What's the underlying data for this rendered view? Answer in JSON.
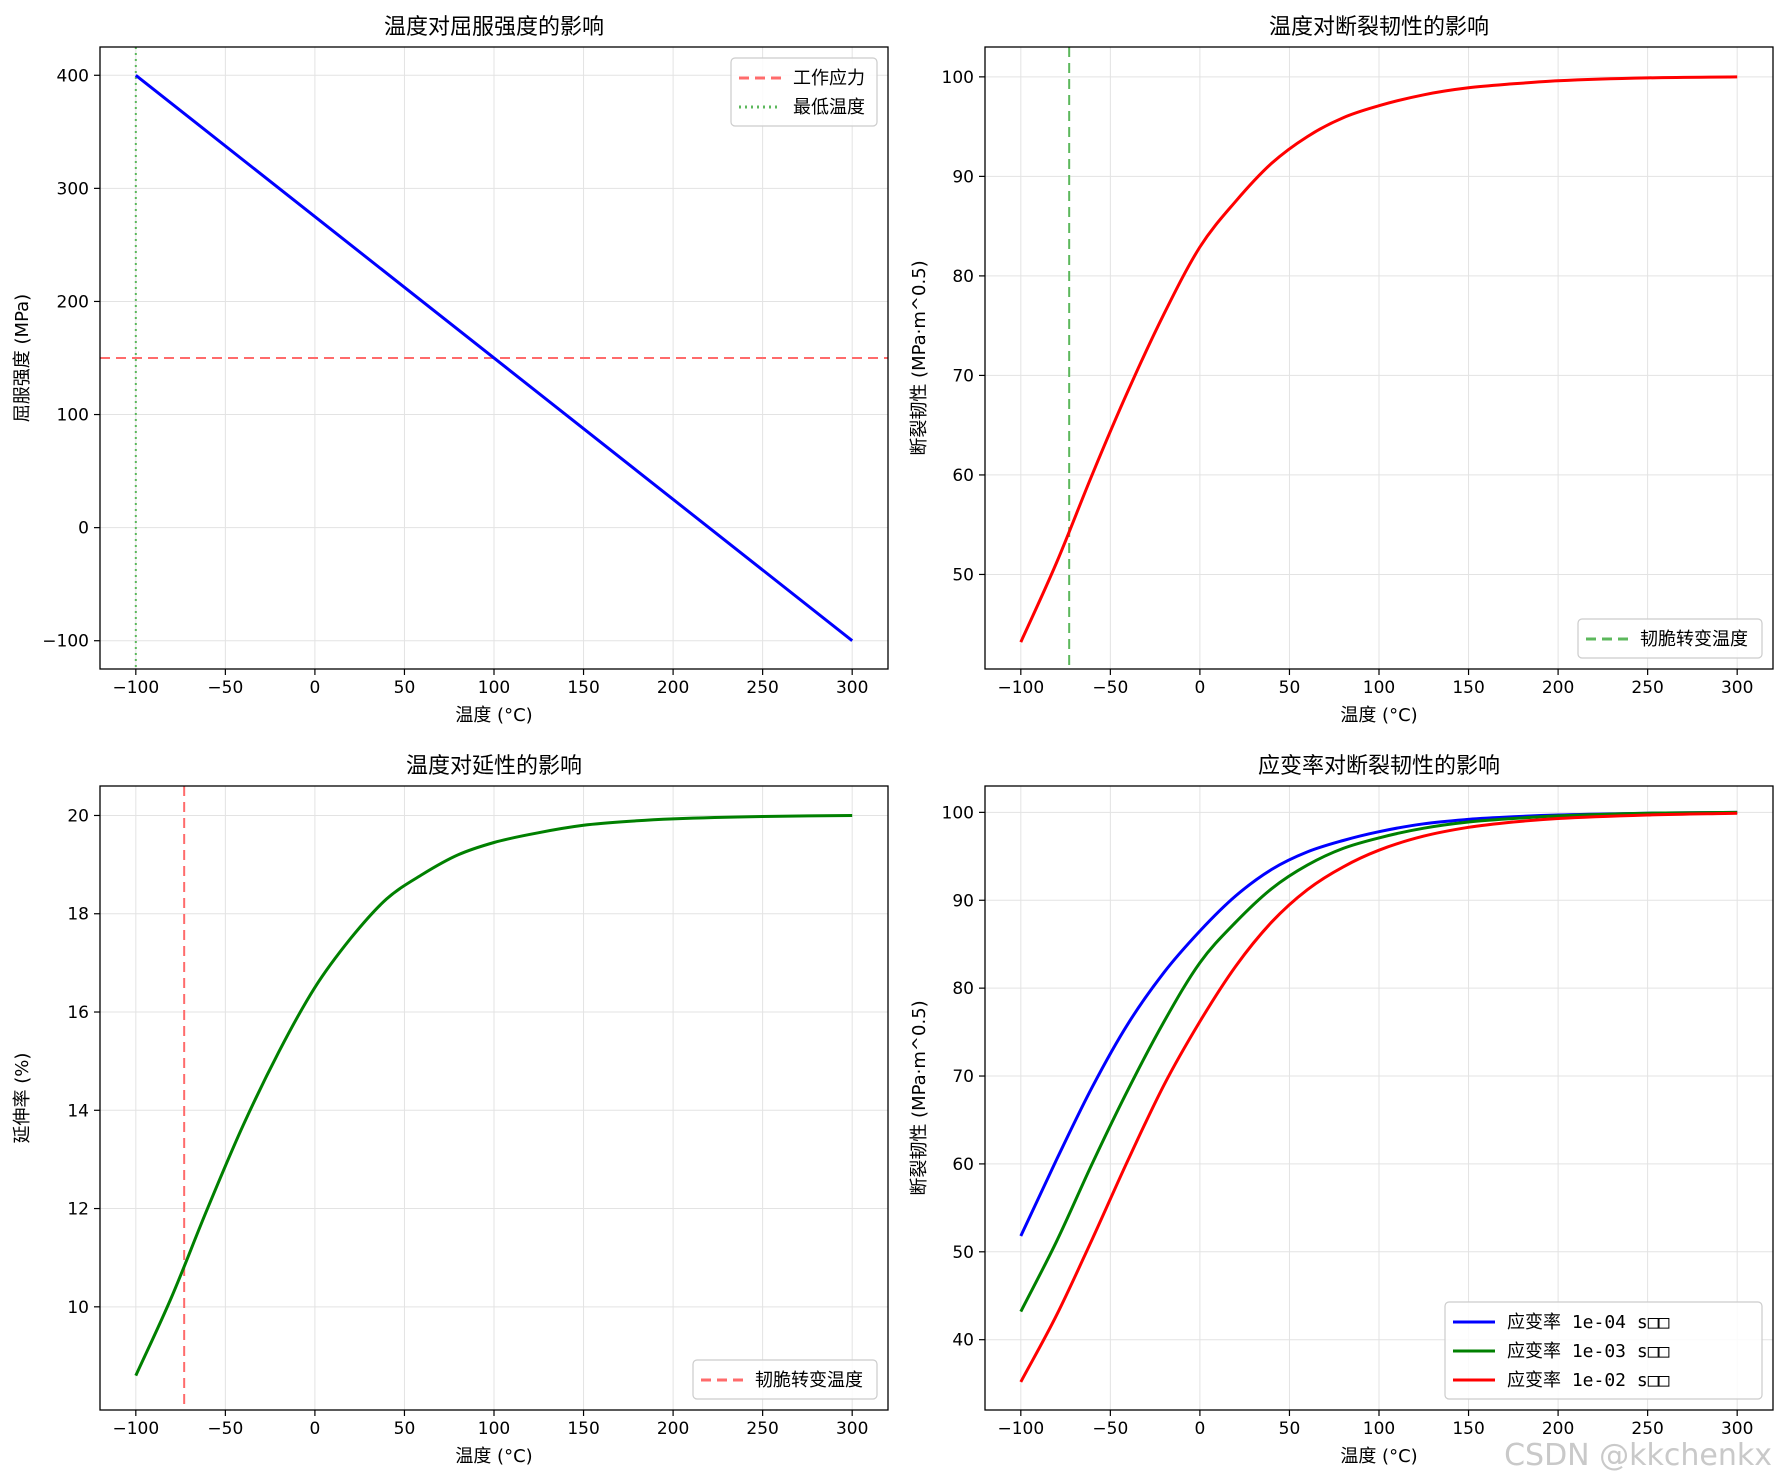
{
  "chart_data": [
    {
      "type": "line",
      "title": "温度对屈服强度的影响",
      "xlabel": "温度 (°C)",
      "ylabel": "屈服强度 (MPa)",
      "xlim": [
        -120,
        320
      ],
      "ylim": [
        -125,
        425
      ],
      "xticks": [
        -100,
        -50,
        0,
        50,
        100,
        150,
        200,
        250,
        300
      ],
      "yticks": [
        -100,
        0,
        100,
        200,
        300,
        400
      ],
      "xtick_labels": [
        "−100",
        "−50",
        "0",
        "50",
        "100",
        "150",
        "200",
        "250",
        "300"
      ],
      "ytick_labels": [
        "−100",
        "0",
        "100",
        "200",
        "300",
        "400"
      ],
      "grid": true,
      "legend_position": "top-right",
      "series": [
        {
          "name": "",
          "color": "#0000ff",
          "style": "solid",
          "x": [
            -100,
            300
          ],
          "y": [
            400,
            -100
          ]
        }
      ],
      "hlines": [
        {
          "y": 150,
          "label": "工作应力",
          "color": "#ff6b6b",
          "style": "dashed"
        }
      ],
      "vlines": [
        {
          "x": -100,
          "label": "最低温度",
          "color": "#5cb85c",
          "style": "dotted"
        }
      ],
      "legend": [
        {
          "label": "工作应力",
          "color": "#ff6b6b",
          "style": "dashed"
        },
        {
          "label": "最低温度",
          "color": "#5cb85c",
          "style": "dotted"
        }
      ]
    },
    {
      "type": "line",
      "title": "温度对断裂韧性的影响",
      "xlabel": "温度 (°C)",
      "ylabel": "断裂韧性 (MPa·m^0.5)",
      "xlim": [
        -120,
        320
      ],
      "ylim": [
        40.5,
        103
      ],
      "xticks": [
        -100,
        -50,
        0,
        50,
        100,
        150,
        200,
        250,
        300
      ],
      "yticks": [
        50,
        60,
        70,
        80,
        90,
        100
      ],
      "xtick_labels": [
        "−100",
        "−50",
        "0",
        "50",
        "100",
        "150",
        "200",
        "250",
        "300"
      ],
      "ytick_labels": [
        "50",
        "60",
        "70",
        "80",
        "90",
        "100"
      ],
      "grid": true,
      "legend_position": "bottom-right",
      "series": [
        {
          "name": "",
          "color": "#ff0000",
          "style": "solid",
          "x": [
            -100,
            -80,
            -60,
            -40,
            -20,
            0,
            20,
            40,
            60,
            80,
            100,
            125,
            150,
            175,
            200,
            250,
            300
          ],
          "y": [
            43.2,
            51.2,
            60.1,
            68.5,
            76.2,
            82.9,
            87.5,
            91.3,
            94.0,
            95.9,
            97.1,
            98.2,
            98.9,
            99.3,
            99.6,
            99.9,
            100.0
          ]
        }
      ],
      "vlines": [
        {
          "x": -73,
          "label": "韧脆转变温度",
          "color": "#5cb85c",
          "style": "dashed"
        }
      ],
      "legend": [
        {
          "label": "韧脆转变温度",
          "color": "#5cb85c",
          "style": "dashed"
        }
      ]
    },
    {
      "type": "line",
      "title": "温度对延性的影响",
      "xlabel": "温度 (°C)",
      "ylabel": "延伸率 (%)",
      "xlim": [
        -120,
        320
      ],
      "ylim": [
        7.9,
        20.6
      ],
      "xticks": [
        -100,
        -50,
        0,
        50,
        100,
        150,
        200,
        250,
        300
      ],
      "yticks": [
        10,
        12,
        14,
        16,
        18,
        20
      ],
      "xtick_labels": [
        "−100",
        "−50",
        "0",
        "50",
        "100",
        "150",
        "200",
        "250",
        "300"
      ],
      "ytick_labels": [
        "10",
        "12",
        "14",
        "16",
        "18",
        "20"
      ],
      "grid": true,
      "legend_position": "bottom-right",
      "series": [
        {
          "name": "",
          "color": "#008000",
          "style": "solid",
          "x": [
            -100,
            -80,
            -60,
            -40,
            -20,
            0,
            20,
            40,
            60,
            80,
            100,
            125,
            150,
            175,
            200,
            250,
            300
          ],
          "y": [
            8.6,
            10.2,
            12.0,
            13.7,
            15.2,
            16.5,
            17.5,
            18.3,
            18.8,
            19.2,
            19.45,
            19.65,
            19.8,
            19.88,
            19.93,
            19.98,
            20.0
          ]
        }
      ],
      "vlines": [
        {
          "x": -73,
          "label": "韧脆转变温度",
          "color": "#ff6b6b",
          "style": "dashed"
        }
      ],
      "legend": [
        {
          "label": "韧脆转变温度",
          "color": "#ff6b6b",
          "style": "dashed"
        }
      ]
    },
    {
      "type": "line",
      "title": "应变率对断裂韧性的影响",
      "xlabel": "温度 (°C)",
      "ylabel": "断裂韧性 (MPa·m^0.5)",
      "xlim": [
        -120,
        320
      ],
      "ylim": [
        32,
        103
      ],
      "xticks": [
        -100,
        -50,
        0,
        50,
        100,
        150,
        200,
        250,
        300
      ],
      "yticks": [
        40,
        50,
        60,
        70,
        80,
        90,
        100
      ],
      "xtick_labels": [
        "−100",
        "−50",
        "0",
        "50",
        "100",
        "150",
        "200",
        "250",
        "300"
      ],
      "ytick_labels": [
        "40",
        "50",
        "60",
        "70",
        "80",
        "90",
        "100"
      ],
      "grid": true,
      "legend_position": "bottom-right",
      "series": [
        {
          "name": "应变率 1e-04 s□□",
          "color": "#0000ff",
          "style": "solid",
          "x": [
            -100,
            -80,
            -60,
            -40,
            -20,
            0,
            20,
            40,
            60,
            80,
            100,
            125,
            150,
            175,
            200,
            250,
            300
          ],
          "y": [
            51.8,
            60.5,
            68.8,
            76.0,
            81.8,
            86.5,
            90.5,
            93.5,
            95.5,
            96.8,
            97.8,
            98.7,
            99.2,
            99.5,
            99.7,
            99.9,
            100.0
          ]
        },
        {
          "name": "应变率 1e-03 s□□",
          "color": "#008000",
          "style": "solid",
          "x": [
            -100,
            -80,
            -60,
            -40,
            -20,
            0,
            20,
            40,
            60,
            80,
            100,
            125,
            150,
            175,
            200,
            250,
            300
          ],
          "y": [
            43.2,
            51.2,
            60.1,
            68.5,
            76.2,
            82.9,
            87.5,
            91.3,
            94.0,
            95.9,
            97.1,
            98.2,
            98.9,
            99.3,
            99.6,
            99.9,
            100.0
          ]
        },
        {
          "name": "应变率 1e-02 s□□",
          "color": "#ff0000",
          "style": "solid",
          "x": [
            -100,
            -80,
            -60,
            -40,
            -20,
            0,
            20,
            40,
            60,
            80,
            100,
            125,
            150,
            175,
            200,
            250,
            300
          ],
          "y": [
            35.2,
            42.8,
            51.5,
            60.5,
            69.0,
            76.2,
            82.5,
            87.5,
            91.2,
            93.8,
            95.7,
            97.3,
            98.3,
            98.9,
            99.3,
            99.7,
            99.9
          ]
        }
      ],
      "legend": [
        {
          "label": "应变率 1e-04 s□□",
          "color": "#0000ff",
          "style": "solid"
        },
        {
          "label": "应变率 1e-03 s□□",
          "color": "#008000",
          "style": "solid"
        },
        {
          "label": "应变率 1e-02 s□□",
          "color": "#ff0000",
          "style": "solid"
        }
      ]
    }
  ],
  "watermark": "CSDN @kkchenkx"
}
